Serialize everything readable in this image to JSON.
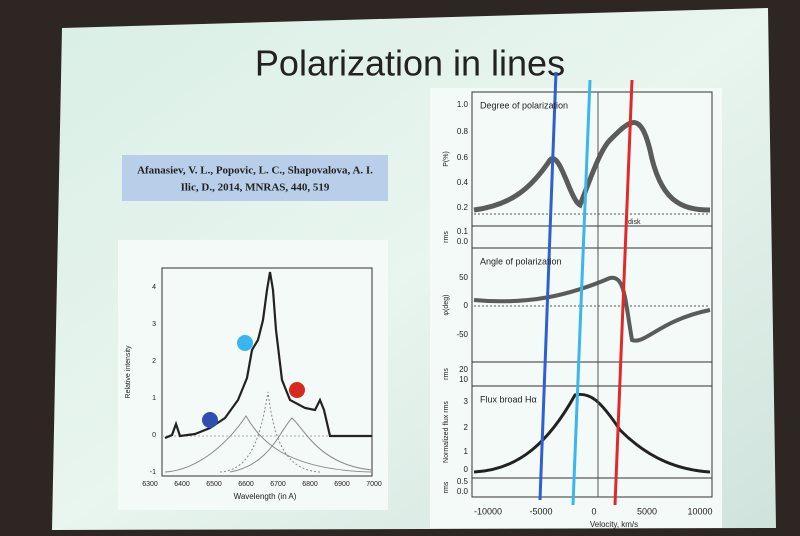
{
  "slide": {
    "title": "Polarization in lines",
    "citation": [
      "Afanasiev, V. L., Popovic, L. C., Shapovalova, A. I.",
      "Ilic, D., 2014, MNRAS, 440, 519"
    ],
    "left_chart": {
      "x_label": "Wavelength (in A)",
      "y_label": "Relative intensity",
      "xticks": [
        "6300",
        "6400",
        "6500",
        "6600",
        "6700",
        "6800",
        "6900",
        "7000"
      ],
      "yticks": [
        "4",
        "3",
        "2",
        "1",
        "0",
        "-1"
      ]
    },
    "right_chart": {
      "panels": [
        {
          "label": "Degree of polarization",
          "y_label": "P(%)",
          "yticks": [
            "1.0",
            "0.8",
            "0.6",
            "0.4",
            "0.2"
          ]
        },
        {
          "y_label": "rms",
          "yticks": [
            "0.1",
            "0.0"
          ]
        },
        {
          "label": "Angle of polarization",
          "y_label": "φ(deg)",
          "yticks": [
            "50",
            "0",
            "-50"
          ]
        },
        {
          "y_label": "rms",
          "yticks": [
            "20",
            "10"
          ]
        },
        {
          "label": "Flux broad Hα",
          "y_label": "Normalized flux rms",
          "yticks": [
            "3",
            "2",
            "1",
            "0"
          ]
        },
        {
          "y_label": "rms",
          "yticks": [
            "0.5",
            "0.0"
          ]
        }
      ],
      "annotation": "disk",
      "xticks": [
        "-10000",
        "-5000",
        "0",
        "5000",
        "10000"
      ],
      "x_label": "Velocity, km/s"
    }
  }
}
